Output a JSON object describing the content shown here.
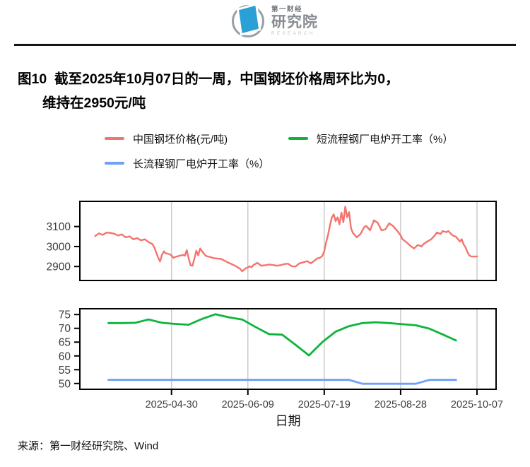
{
  "header": {
    "logo_top": "第一财经",
    "logo_main": "研究院",
    "logo_sub": "RESEARCH"
  },
  "title": {
    "line1": "图10  截至2025年10月07日的一周，中国钢坯价格周环比为0，",
    "line2": "维持在2950元/吨"
  },
  "legend": {
    "items": [
      {
        "label": "中国钢坯价格(元/吨)",
        "color": "#F3746D"
      },
      {
        "label": "短流程钢厂电炉开工率（%）",
        "color": "#0CB43C"
      },
      {
        "label": "长流程钢厂电炉开工率（%）",
        "color": "#6F9FF8"
      }
    ]
  },
  "footer": {
    "source": "来源：第一财经研究院、Wind"
  },
  "colors": {
    "gridline": "#CBCBCB",
    "axis": "#000000",
    "tick_label": "#3D3D3D"
  },
  "chart_data": {
    "type": "line",
    "title": "图10 截至2025年10月07日的一周，中国钢坯价格周环比为0，维持在2950元/吨",
    "x_axis": {
      "label": "日期",
      "start": "2025-03-13",
      "end": "2025-10-17",
      "tick_dates": [
        "2025-04-30",
        "2025-06-09",
        "2025-07-19",
        "2025-08-28",
        "2025-10-07"
      ]
    },
    "panels": [
      {
        "id": "price-panel",
        "y_min": 2830,
        "y_max": 3226,
        "y_ticks": [
          2900,
          3000,
          3100
        ],
        "series": [
          {
            "id": "price-line",
            "name": "中国钢坯价格(元/吨)",
            "color": "#F3746D",
            "points": [
              [
                "2025-03-21",
                3052
              ],
              [
                "2025-03-23",
                3066
              ],
              [
                "2025-03-25",
                3058
              ],
              [
                "2025-03-27",
                3070
              ],
              [
                "2025-03-29",
                3068
              ],
              [
                "2025-03-31",
                3064
              ],
              [
                "2025-04-02",
                3055
              ],
              [
                "2025-04-04",
                3061
              ],
              [
                "2025-04-06",
                3046
              ],
              [
                "2025-04-08",
                3051
              ],
              [
                "2025-04-10",
                3036
              ],
              [
                "2025-04-12",
                3042
              ],
              [
                "2025-04-14",
                3031
              ],
              [
                "2025-04-16",
                3036
              ],
              [
                "2025-04-18",
                3022
              ],
              [
                "2025-04-20",
                3012
              ],
              [
                "2025-04-21",
                2995
              ],
              [
                "2025-04-22",
                2970
              ],
              [
                "2025-04-23",
                2945
              ],
              [
                "2025-04-24",
                2925
              ],
              [
                "2025-04-25",
                2958
              ],
              [
                "2025-04-26",
                2976
              ],
              [
                "2025-04-27",
                2966
              ],
              [
                "2025-04-29",
                2961
              ],
              [
                "2025-04-30",
                2956
              ],
              [
                "2025-05-01",
                2943
              ],
              [
                "2025-05-02",
                2948
              ],
              [
                "2025-05-04",
                2953
              ],
              [
                "2025-05-06",
                2958
              ],
              [
                "2025-05-07",
                2954
              ],
              [
                "2025-05-08",
                2982
              ],
              [
                "2025-05-09",
                2940
              ],
              [
                "2025-05-10",
                2906
              ],
              [
                "2025-05-11",
                2904
              ],
              [
                "2025-05-12",
                2940
              ],
              [
                "2025-05-13",
                2979
              ],
              [
                "2025-05-14",
                2956
              ],
              [
                "2025-05-15",
                2990
              ],
              [
                "2025-05-16",
                2976
              ],
              [
                "2025-05-18",
                2953
              ],
              [
                "2025-05-20",
                2948
              ],
              [
                "2025-05-22",
                2942
              ],
              [
                "2025-05-24",
                2940
              ],
              [
                "2025-05-26",
                2938
              ],
              [
                "2025-05-28",
                2928
              ],
              [
                "2025-05-30",
                2918
              ],
              [
                "2025-06-01",
                2910
              ],
              [
                "2025-06-03",
                2900
              ],
              [
                "2025-06-05",
                2888
              ],
              [
                "2025-06-06",
                2876
              ],
              [
                "2025-06-08",
                2892
              ],
              [
                "2025-06-09",
                2895
              ],
              [
                "2025-06-10",
                2901
              ],
              [
                "2025-06-11",
                2896
              ],
              [
                "2025-06-12",
                2908
              ],
              [
                "2025-06-14",
                2918
              ],
              [
                "2025-06-16",
                2904
              ],
              [
                "2025-06-18",
                2906
              ],
              [
                "2025-06-20",
                2910
              ],
              [
                "2025-06-22",
                2908
              ],
              [
                "2025-06-24",
                2904
              ],
              [
                "2025-06-26",
                2906
              ],
              [
                "2025-06-28",
                2912
              ],
              [
                "2025-06-30",
                2914
              ],
              [
                "2025-07-02",
                2901
              ],
              [
                "2025-07-04",
                2900
              ],
              [
                "2025-07-06",
                2916
              ],
              [
                "2025-07-08",
                2921
              ],
              [
                "2025-07-10",
                2927
              ],
              [
                "2025-07-12",
                2916
              ],
              [
                "2025-07-14",
                2930
              ],
              [
                "2025-07-15",
                2939
              ],
              [
                "2025-07-17",
                2945
              ],
              [
                "2025-07-18",
                2953
              ],
              [
                "2025-07-19",
                2976
              ],
              [
                "2025-07-20",
                3021
              ],
              [
                "2025-07-21",
                3058
              ],
              [
                "2025-07-22",
                3105
              ],
              [
                "2025-07-23",
                3146
              ],
              [
                "2025-07-24",
                3161
              ],
              [
                "2025-07-25",
                3127
              ],
              [
                "2025-07-26",
                3146
              ],
              [
                "2025-07-27",
                3111
              ],
              [
                "2025-07-28",
                3169
              ],
              [
                "2025-07-29",
                3121
              ],
              [
                "2025-07-30",
                3199
              ],
              [
                "2025-07-31",
                3146
              ],
              [
                "2025-08-01",
                3172
              ],
              [
                "2025-08-02",
                3092
              ],
              [
                "2025-08-03",
                3068
              ],
              [
                "2025-08-05",
                3046
              ],
              [
                "2025-08-07",
                3063
              ],
              [
                "2025-08-09",
                3098
              ],
              [
                "2025-08-10",
                3103
              ],
              [
                "2025-08-12",
                3081
              ],
              [
                "2025-08-14",
                3131
              ],
              [
                "2025-08-16",
                3119
              ],
              [
                "2025-08-18",
                3081
              ],
              [
                "2025-08-20",
                3086
              ],
              [
                "2025-08-22",
                3116
              ],
              [
                "2025-08-24",
                3103
              ],
              [
                "2025-08-26",
                3081
              ],
              [
                "2025-08-28",
                3056
              ],
              [
                "2025-08-29",
                3036
              ],
              [
                "2025-08-31",
                3022
              ],
              [
                "2025-09-02",
                3004
              ],
              [
                "2025-09-04",
                2990
              ],
              [
                "2025-09-06",
                3008
              ],
              [
                "2025-09-08",
                3000
              ],
              [
                "2025-09-09",
                3012
              ],
              [
                "2025-09-11",
                3025
              ],
              [
                "2025-09-13",
                3036
              ],
              [
                "2025-09-15",
                3056
              ],
              [
                "2025-09-16",
                3070
              ],
              [
                "2025-09-18",
                3063
              ],
              [
                "2025-09-19",
                3077
              ],
              [
                "2025-09-21",
                3072
              ],
              [
                "2025-09-22",
                3077
              ],
              [
                "2025-09-24",
                3057
              ],
              [
                "2025-09-26",
                3049
              ],
              [
                "2025-09-28",
                3025
              ],
              [
                "2025-09-29",
                3036
              ],
              [
                "2025-09-30",
                3010
              ],
              [
                "2025-10-01",
                2996
              ],
              [
                "2025-10-02",
                2972
              ],
              [
                "2025-10-03",
                2955
              ],
              [
                "2025-10-04",
                2950
              ],
              [
                "2025-10-07",
                2950
              ]
            ]
          }
        ]
      },
      {
        "id": "rates-panel",
        "y_min": 47.9,
        "y_max": 77.1,
        "y_ticks": [
          50,
          55,
          60,
          65,
          70,
          75
        ],
        "series": [
          {
            "id": "short-process-line",
            "name": "短流程钢厂电炉开工率（%）",
            "color": "#0CB43C",
            "points": [
              [
                "2025-03-28",
                71.9
              ],
              [
                "2025-04-04",
                71.9
              ],
              [
                "2025-04-11",
                72.0
              ],
              [
                "2025-04-18",
                73.2
              ],
              [
                "2025-04-25",
                72.0
              ],
              [
                "2025-05-02",
                71.6
              ],
              [
                "2025-05-09",
                71.3
              ],
              [
                "2025-05-16",
                73.4
              ],
              [
                "2025-05-23",
                75.1
              ],
              [
                "2025-05-30",
                74.0
              ],
              [
                "2025-06-06",
                73.2
              ],
              [
                "2025-06-13",
                70.5
              ],
              [
                "2025-06-20",
                67.9
              ],
              [
                "2025-06-27",
                67.7
              ],
              [
                "2025-07-04",
                64.0
              ],
              [
                "2025-07-11",
                60.2
              ],
              [
                "2025-07-18",
                65.0
              ],
              [
                "2025-07-25",
                68.8
              ],
              [
                "2025-08-01",
                70.8
              ],
              [
                "2025-08-08",
                71.9
              ],
              [
                "2025-08-15",
                72.2
              ],
              [
                "2025-08-22",
                71.9
              ],
              [
                "2025-08-29",
                71.5
              ],
              [
                "2025-09-05",
                71.1
              ],
              [
                "2025-09-12",
                69.9
              ],
              [
                "2025-09-19",
                67.8
              ],
              [
                "2025-09-26",
                65.6
              ]
            ]
          },
          {
            "id": "long-process-line",
            "name": "长流程钢厂电炉开工率（%）",
            "color": "#6F9FF8",
            "points": [
              [
                "2025-03-28",
                51.3
              ],
              [
                "2025-04-04",
                51.3
              ],
              [
                "2025-04-11",
                51.3
              ],
              [
                "2025-04-18",
                51.3
              ],
              [
                "2025-04-25",
                51.3
              ],
              [
                "2025-05-02",
                51.3
              ],
              [
                "2025-05-09",
                51.3
              ],
              [
                "2025-05-16",
                51.3
              ],
              [
                "2025-05-23",
                51.3
              ],
              [
                "2025-05-30",
                51.3
              ],
              [
                "2025-06-06",
                51.3
              ],
              [
                "2025-06-13",
                51.3
              ],
              [
                "2025-06-20",
                51.3
              ],
              [
                "2025-06-27",
                51.3
              ],
              [
                "2025-07-04",
                51.3
              ],
              [
                "2025-07-11",
                51.3
              ],
              [
                "2025-07-18",
                51.3
              ],
              [
                "2025-07-25",
                51.3
              ],
              [
                "2025-08-01",
                51.3
              ],
              [
                "2025-08-08",
                49.9
              ],
              [
                "2025-08-15",
                49.9
              ],
              [
                "2025-08-22",
                49.9
              ],
              [
                "2025-08-29",
                49.9
              ],
              [
                "2025-09-05",
                49.9
              ],
              [
                "2025-09-12",
                51.3
              ],
              [
                "2025-09-19",
                51.3
              ],
              [
                "2025-09-26",
                51.3
              ]
            ]
          }
        ]
      }
    ]
  }
}
